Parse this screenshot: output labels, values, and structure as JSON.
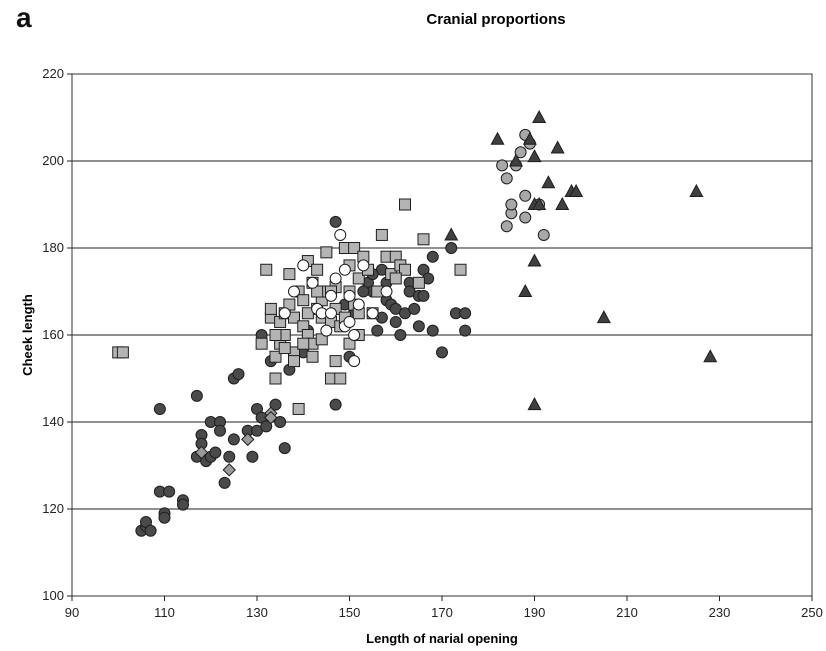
{
  "panel_label": "a",
  "chart_data": {
    "type": "scatter",
    "title": "Cranial proportions",
    "xlabel": "Length of narial opening",
    "ylabel": "Cheek length",
    "xlim": [
      90,
      250
    ],
    "ylim": [
      100,
      220
    ],
    "x_ticks": [
      90,
      110,
      130,
      150,
      170,
      190,
      210,
      230,
      250
    ],
    "y_ticks": [
      100,
      120,
      140,
      160,
      180,
      200,
      220
    ],
    "grid": "horizontal",
    "legend": "none",
    "series": [
      {
        "marker": "circle",
        "fill": "#4a4a4a",
        "points": [
          [
            105,
            115
          ],
          [
            106,
            116
          ],
          [
            106,
            117
          ],
          [
            107,
            115
          ],
          [
            109,
            143
          ],
          [
            109,
            124
          ],
          [
            110,
            119
          ],
          [
            110,
            118
          ],
          [
            111,
            124
          ],
          [
            114,
            122
          ],
          [
            114,
            121
          ],
          [
            117,
            146
          ],
          [
            117,
            132
          ],
          [
            118,
            137
          ],
          [
            118,
            135
          ],
          [
            119,
            131
          ],
          [
            120,
            140
          ],
          [
            120,
            132
          ],
          [
            121,
            133
          ],
          [
            122,
            140
          ],
          [
            122,
            138
          ],
          [
            123,
            126
          ],
          [
            124,
            132
          ],
          [
            125,
            150
          ],
          [
            125,
            136
          ],
          [
            126,
            151
          ],
          [
            128,
            138
          ],
          [
            129,
            132
          ],
          [
            130,
            138
          ],
          [
            130,
            143
          ],
          [
            131,
            160
          ],
          [
            131,
            141
          ],
          [
            132,
            139
          ],
          [
            133,
            154
          ],
          [
            134,
            144
          ],
          [
            135,
            140
          ],
          [
            136,
            134
          ],
          [
            137,
            152
          ],
          [
            140,
            156
          ],
          [
            141,
            161
          ],
          [
            147,
            186
          ],
          [
            147,
            144
          ],
          [
            150,
            155
          ],
          [
            151,
            165
          ],
          [
            152,
            160
          ],
          [
            154,
            172
          ],
          [
            155,
            170
          ],
          [
            156,
            161
          ],
          [
            157,
            175
          ],
          [
            158,
            168
          ],
          [
            159,
            167
          ],
          [
            160,
            166
          ],
          [
            161,
            160
          ],
          [
            162,
            165
          ],
          [
            163,
            172
          ],
          [
            164,
            166
          ],
          [
            165,
            162
          ],
          [
            166,
            175
          ],
          [
            167,
            173
          ],
          [
            168,
            161
          ],
          [
            168,
            178
          ],
          [
            170,
            156
          ],
          [
            172,
            180
          ],
          [
            173,
            165
          ],
          [
            175,
            161
          ],
          [
            175,
            165
          ],
          [
            155,
            174
          ],
          [
            158,
            172
          ],
          [
            161,
            176
          ],
          [
            163,
            170
          ],
          [
            165,
            169
          ],
          [
            166,
            169
          ],
          [
            160,
            163
          ],
          [
            157,
            164
          ],
          [
            153,
            170
          ],
          [
            149,
            167
          ]
        ]
      },
      {
        "marker": "square",
        "fill": "#b4b4b4",
        "points": [
          [
            100,
            156
          ],
          [
            101,
            156
          ],
          [
            131,
            158
          ],
          [
            132,
            175
          ],
          [
            133,
            164
          ],
          [
            133,
            166
          ],
          [
            134,
            150
          ],
          [
            134,
            155
          ],
          [
            135,
            163
          ],
          [
            135,
            158
          ],
          [
            136,
            165
          ],
          [
            136,
            160
          ],
          [
            137,
            174
          ],
          [
            137,
            167
          ],
          [
            138,
            156
          ],
          [
            138,
            164
          ],
          [
            139,
            170
          ],
          [
            139,
            143
          ],
          [
            140,
            162
          ],
          [
            140,
            168
          ],
          [
            141,
            177
          ],
          [
            141,
            160
          ],
          [
            142,
            158
          ],
          [
            142,
            172
          ],
          [
            143,
            175
          ],
          [
            143,
            166
          ],
          [
            144,
            164
          ],
          [
            144,
            168
          ],
          [
            145,
            179
          ],
          [
            145,
            170
          ],
          [
            146,
            150
          ],
          [
            146,
            163
          ],
          [
            147,
            166
          ],
          [
            147,
            171
          ],
          [
            148,
            150
          ],
          [
            148,
            162
          ],
          [
            149,
            180
          ],
          [
            149,
            164
          ],
          [
            150,
            170
          ],
          [
            150,
            176
          ],
          [
            151,
            180
          ],
          [
            151,
            167
          ],
          [
            152,
            165
          ],
          [
            152,
            173
          ],
          [
            153,
            178
          ],
          [
            154,
            175
          ],
          [
            155,
            165
          ],
          [
            157,
            183
          ],
          [
            158,
            178
          ],
          [
            159,
            174
          ],
          [
            160,
            178
          ],
          [
            161,
            176
          ],
          [
            162,
            175
          ],
          [
            165,
            172
          ],
          [
            166,
            182
          ],
          [
            162,
            190
          ],
          [
            174,
            175
          ],
          [
            136,
            157
          ],
          [
            134,
            160
          ],
          [
            138,
            154
          ],
          [
            142,
            155
          ],
          [
            144,
            159
          ],
          [
            147,
            154
          ],
          [
            146,
            170
          ],
          [
            143,
            170
          ],
          [
            140,
            158
          ],
          [
            141,
            165
          ],
          [
            150,
            158
          ],
          [
            152,
            160
          ],
          [
            156,
            170
          ],
          [
            160,
            173
          ]
        ]
      },
      {
        "marker": "circle",
        "fill": "#ffffff",
        "points": [
          [
            136,
            165
          ],
          [
            138,
            170
          ],
          [
            140,
            176
          ],
          [
            142,
            172
          ],
          [
            143,
            166
          ],
          [
            145,
            161
          ],
          [
            146,
            169
          ],
          [
            147,
            173
          ],
          [
            148,
            183
          ],
          [
            149,
            175
          ],
          [
            149,
            162
          ],
          [
            150,
            163
          ],
          [
            150,
            169
          ],
          [
            151,
            160
          ],
          [
            151,
            154
          ],
          [
            152,
            167
          ],
          [
            153,
            176
          ],
          [
            155,
            165
          ],
          [
            158,
            170
          ],
          [
            144,
            165
          ],
          [
            146,
            165
          ]
        ]
      },
      {
        "marker": "circle",
        "fill": "#a8a8a8",
        "points": [
          [
            184,
            185
          ],
          [
            184,
            196
          ],
          [
            185,
            188
          ],
          [
            185,
            190
          ],
          [
            186,
            199
          ],
          [
            187,
            202
          ],
          [
            188,
            206
          ],
          [
            188,
            192
          ],
          [
            188,
            187
          ],
          [
            189,
            204
          ],
          [
            191,
            190
          ],
          [
            192,
            183
          ],
          [
            183,
            199
          ]
        ]
      },
      {
        "marker": "triangle",
        "fill": "#3f3f3f",
        "points": [
          [
            172,
            183
          ],
          [
            182,
            205
          ],
          [
            186,
            200
          ],
          [
            188,
            170
          ],
          [
            189,
            205
          ],
          [
            190,
            201
          ],
          [
            190,
            190
          ],
          [
            190,
            177
          ],
          [
            190,
            144
          ],
          [
            191,
            210
          ],
          [
            191,
            190
          ],
          [
            193,
            195
          ],
          [
            195,
            203
          ],
          [
            196,
            190
          ],
          [
            198,
            193
          ],
          [
            199,
            193
          ],
          [
            205,
            164
          ],
          [
            225,
            193
          ],
          [
            228,
            155
          ]
        ]
      },
      {
        "marker": "diamond",
        "fill": "#9a9a9a",
        "points": [
          [
            118,
            133
          ],
          [
            124,
            129
          ],
          [
            128,
            136
          ],
          [
            133,
            142
          ],
          [
            133,
            141
          ]
        ]
      }
    ]
  }
}
